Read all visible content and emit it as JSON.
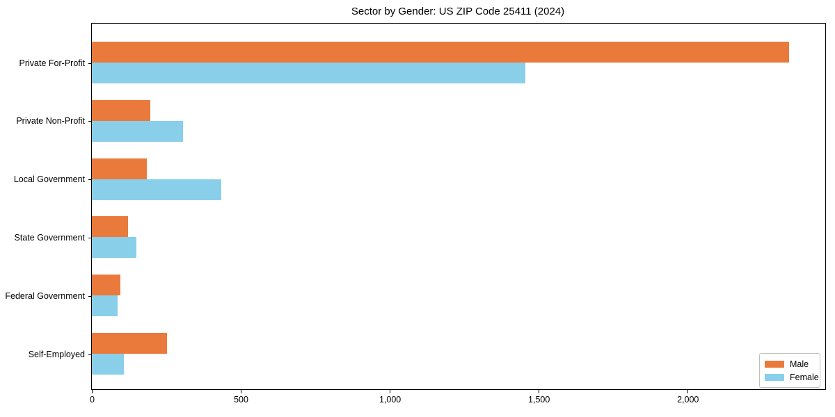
{
  "chart_data": {
    "type": "bar",
    "orientation": "horizontal",
    "title": "Sector by Gender: US ZIP Code 25411 (2024)",
    "categories": [
      "Private For-Profit",
      "Private Non-Profit",
      "Local Government",
      "State Government",
      "Federal Government",
      "Self-Employed"
    ],
    "series": [
      {
        "name": "Male",
        "color": "#ea7a3c",
        "values": [
          2340,
          197,
          185,
          121,
          96,
          253
        ]
      },
      {
        "name": "Female",
        "color": "#89cfe9",
        "values": [
          1455,
          307,
          435,
          150,
          87,
          108
        ]
      }
    ],
    "xlabel": "",
    "ylabel": "",
    "xlim": [
      0,
      2462
    ],
    "xticks": [
      {
        "value": 0,
        "label": "0"
      },
      {
        "value": 500,
        "label": "500"
      },
      {
        "value": 1000,
        "label": "1,000"
      },
      {
        "value": 1500,
        "label": "1,500"
      },
      {
        "value": 2000,
        "label": "2,000"
      }
    ],
    "grid": false,
    "legend_position": "lower right",
    "background_color": "#ffffff",
    "axis_color": "#000000"
  }
}
